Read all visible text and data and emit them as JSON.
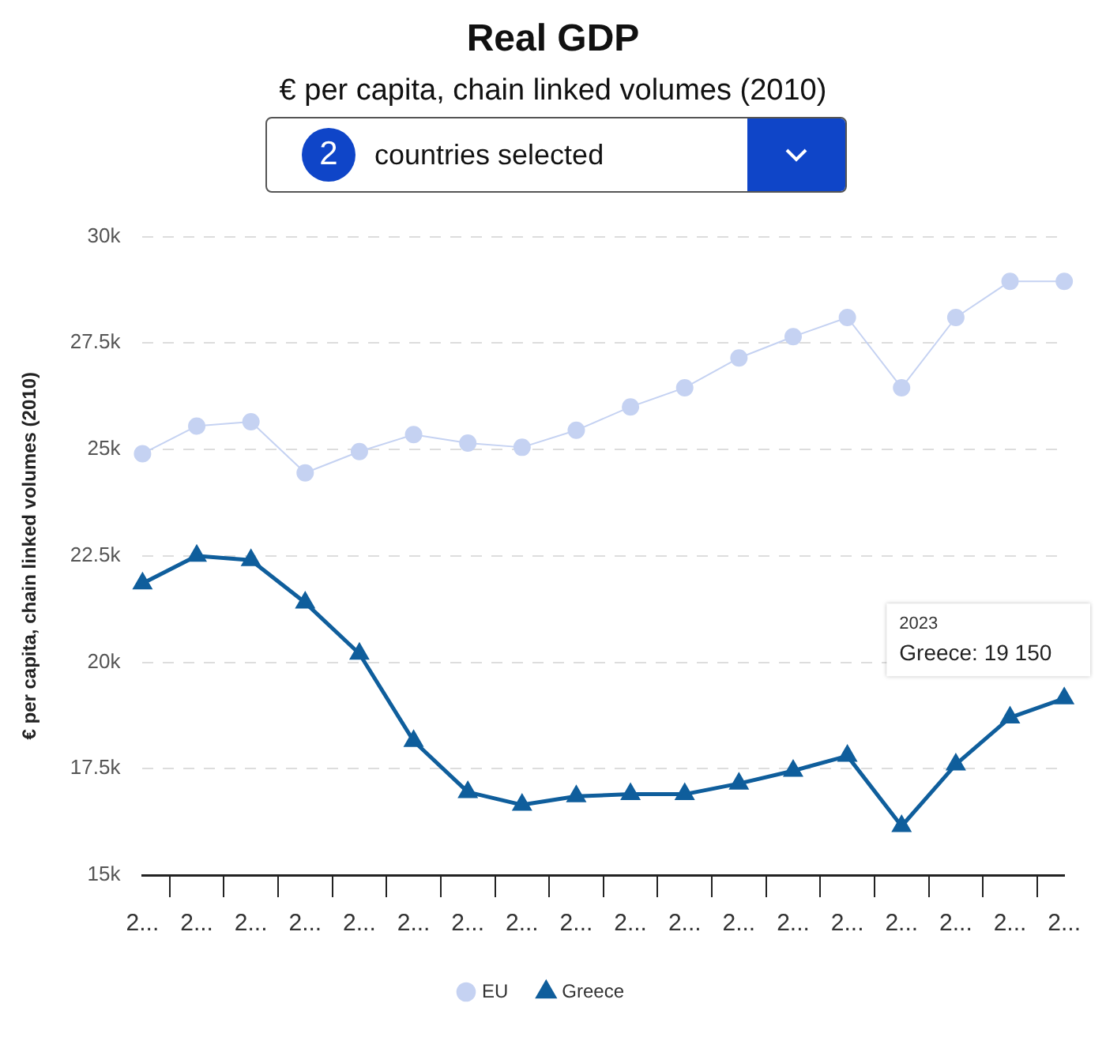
{
  "chart_data": {
    "type": "line",
    "title": "Real GDP",
    "subtitle": "€ per capita, chain linked volumes (2010)",
    "ylabel": "€ per capita, chain linked volumes (2010)",
    "annotations": [
      "2",
      "countries selected",
      "2023",
      "Greece: 19 150"
    ],
    "categories": [
      "2...",
      "2...",
      "2...",
      "2...",
      "2...",
      "2...",
      "2...",
      "2...",
      "2...",
      "2...",
      "2...",
      "2...",
      "2...",
      "2...",
      "2...",
      "2...",
      "2...",
      "2..."
    ],
    "series": [
      {
        "name": "EU",
        "color": "#c5d2f2",
        "marker": "circle",
        "values": [
          24900,
          25550,
          25650,
          24450,
          24950,
          25350,
          25150,
          25050,
          25450,
          26000,
          26450,
          27150,
          27650,
          28100,
          26450,
          28100,
          28950,
          28950
        ]
      },
      {
        "name": "Greece",
        "color": "#0f5e9c",
        "marker": "triangle",
        "values": [
          21850,
          22500,
          22400,
          21400,
          20200,
          18150,
          16950,
          16650,
          16850,
          16900,
          16900,
          17150,
          17450,
          17800,
          16150,
          17600,
          18700,
          19150
        ]
      }
    ],
    "ylim": [
      15000,
      30000
    ],
    "yticks": [
      {
        "value": 15000,
        "label": "15k"
      },
      {
        "value": 17500,
        "label": "17.5k"
      },
      {
        "value": 20000,
        "label": "20k"
      },
      {
        "value": 22500,
        "label": "22.5k"
      },
      {
        "value": 25000,
        "label": "25k"
      },
      {
        "value": 27500,
        "label": "27.5k"
      },
      {
        "value": 30000,
        "label": "30k"
      }
    ],
    "grid": "y",
    "legend": "bottom",
    "line_style": "solid"
  }
}
